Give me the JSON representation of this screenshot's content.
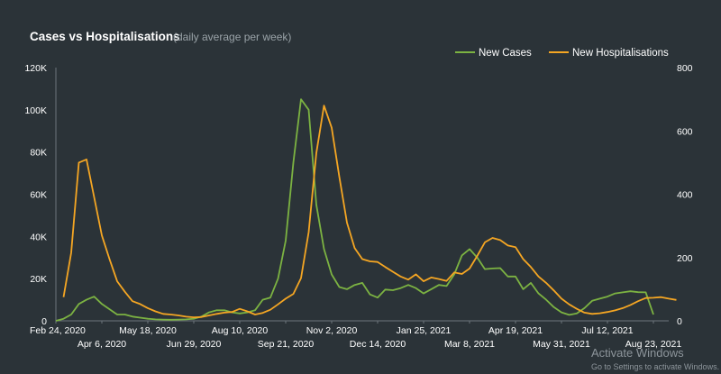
{
  "chart_data": {
    "type": "line",
    "title": "Cases vs Hospitalisations",
    "subtitle": "(daily average per week)",
    "y_left": {
      "ticks": [
        "0",
        "20K",
        "40K",
        "60K",
        "80K",
        "100K",
        "120K"
      ],
      "range": [
        0,
        120000
      ]
    },
    "y_right": {
      "ticks": [
        "0",
        "200",
        "400",
        "600",
        "800"
      ],
      "range": [
        0,
        800
      ]
    },
    "x_tick_labels": [
      "Feb 24, 2020",
      "Apr 6, 2020",
      "May 18, 2020",
      "Jun 29, 2020",
      "Aug 10, 2020",
      "Sep 21, 2020",
      "Nov 2, 2020",
      "Dec 14, 2020",
      "Jan 25, 2021",
      "Mar 8, 2021",
      "Apr 19, 2021",
      "May 31, 2021",
      "Jul 12, 2021",
      "Aug 23, 2021"
    ],
    "x_tick_week_index": [
      0,
      6,
      12,
      18,
      24,
      30,
      36,
      42,
      48,
      54,
      60,
      66,
      72,
      78
    ],
    "legend_position": "top-right",
    "grid": false,
    "series": [
      {
        "name": "New Cases",
        "axis": "left",
        "color": "#7cb342",
        "values": [
          0,
          1000,
          3000,
          8000,
          10000,
          11500,
          8000,
          5500,
          3000,
          3000,
          2000,
          1500,
          1000,
          700,
          600,
          500,
          600,
          700,
          1000,
          2000,
          4000,
          5000,
          5000,
          4000,
          3500,
          4000,
          5000,
          10000,
          11000,
          20000,
          38000,
          75000,
          105000,
          100000,
          55000,
          34000,
          22000,
          16000,
          15000,
          17000,
          18000,
          12500,
          11000,
          14800,
          14500,
          15500,
          17000,
          15500,
          13000,
          15000,
          17000,
          16500,
          22000,
          31000,
          34000,
          30000,
          24500,
          24800,
          25000,
          21000,
          21000,
          15000,
          18000,
          13000,
          10000,
          6500,
          4000,
          2800,
          3500,
          6000,
          9500,
          10500,
          11500,
          13000,
          13500,
          14000,
          13600,
          13500,
          3000
        ]
      },
      {
        "name": "New Hospitalisations",
        "axis": "right",
        "color": "#f5a623",
        "values": [
          75,
          215,
          500,
          510,
          390,
          270,
          195,
          125,
          92,
          62,
          53,
          40,
          30,
          22,
          20,
          17,
          13,
          11,
          12,
          17,
          22,
          26,
          28,
          38,
          30,
          20,
          25,
          35,
          52,
          70,
          85,
          135,
          280,
          530,
          680,
          610,
          455,
          310,
          230,
          195,
          188,
          186,
          170,
          155,
          140,
          130,
          147,
          125,
          137,
          132,
          126,
          153,
          148,
          165,
          205,
          248,
          262,
          255,
          238,
          233,
          195,
          170,
          140,
          120,
          96,
          70,
          52,
          38,
          26,
          22,
          24,
          28,
          33,
          40,
          50,
          62,
          72,
          73,
          75,
          70,
          66
        ]
      }
    ]
  },
  "watermark": {
    "line1": "Activate Windows",
    "line2": "Go to Settings to activate Windows."
  }
}
